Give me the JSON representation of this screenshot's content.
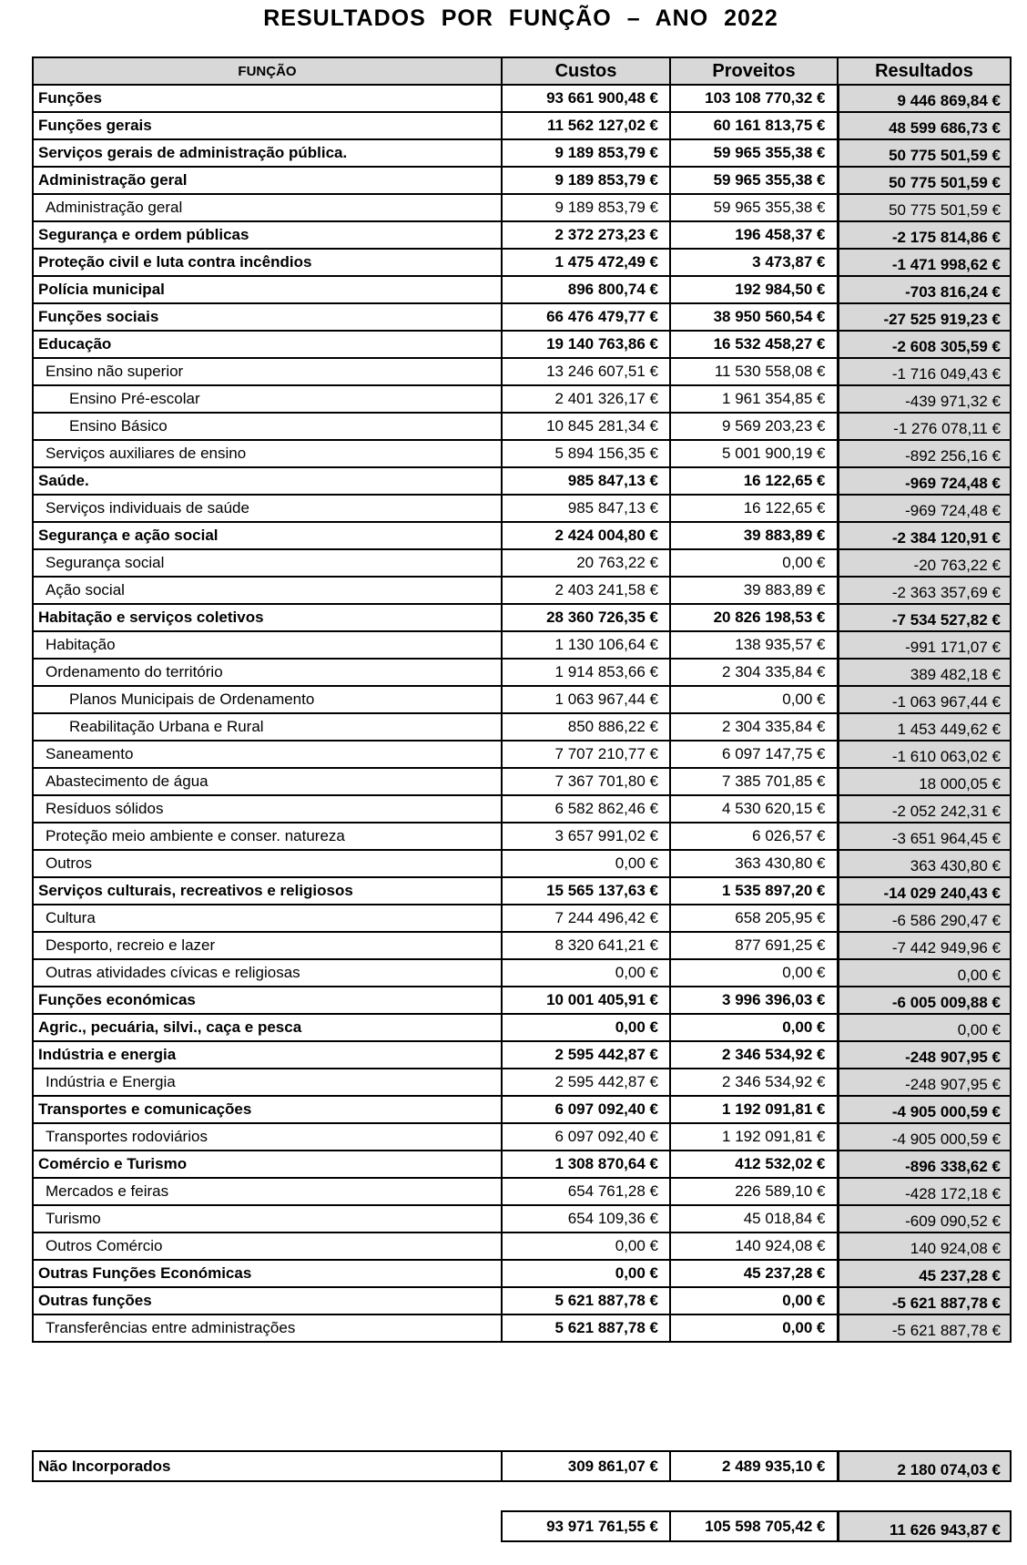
{
  "title": "RESULTADOS POR FUNÇÃO – ANO 2022",
  "colors": {
    "cell_gray": "#d8d8d8",
    "border": "#000000",
    "background": "#ffffff",
    "text": "#000000"
  },
  "table": {
    "headers": {
      "funcao": "FUNÇÃO",
      "custos": "Custos",
      "proveitos": "Proveitos",
      "resultados": "Resultados"
    },
    "rows": [
      {
        "label": "Funções",
        "indent": 0,
        "bold": true,
        "custos": "93 661 900,48 €",
        "proveitos": "103 108 770,32 €",
        "resultados": "9 446 869,84 €",
        "resultados_bold": true
      },
      {
        "label": "Funções gerais",
        "indent": 0,
        "bold": true,
        "custos": "11 562 127,02 €",
        "proveitos": "60 161 813,75 €",
        "resultados": "48 599 686,73 €",
        "resultados_bold": true
      },
      {
        "label": "Serviços gerais de administração pública.",
        "indent": 0,
        "bold": true,
        "custos": "9 189 853,79 €",
        "proveitos": "59 965 355,38 €",
        "resultados": "50 775 501,59 €",
        "resultados_bold": true
      },
      {
        "label": "Administração geral",
        "indent": 0,
        "bold": true,
        "custos": "9 189 853,79 €",
        "proveitos": "59 965 355,38 €",
        "resultados": "50 775 501,59 €",
        "resultados_bold": true
      },
      {
        "label": "Administração geral",
        "indent": 1,
        "bold": false,
        "custos": "9 189 853,79 €",
        "proveitos": "59 965 355,38 €",
        "resultados": "50 775 501,59 €",
        "resultados_bold": false
      },
      {
        "label": "Segurança e ordem públicas",
        "indent": 0,
        "bold": true,
        "custos": "2 372 273,23 €",
        "proveitos": "196 458,37 €",
        "resultados": "-2 175 814,86 €",
        "resultados_bold": true
      },
      {
        "label": "Proteção civil e luta contra incêndios",
        "indent": 0,
        "bold": true,
        "custos": "1 475 472,49 €",
        "proveitos": "3 473,87 €",
        "resultados": "-1 471 998,62 €",
        "resultados_bold": true
      },
      {
        "label": "Polícia municipal",
        "indent": 0,
        "bold": true,
        "custos": "896 800,74 €",
        "proveitos": "192 984,50 €",
        "resultados": "-703 816,24 €",
        "resultados_bold": true
      },
      {
        "label": "Funções sociais",
        "indent": 0,
        "bold": true,
        "custos": "66 476 479,77 €",
        "proveitos": "38 950 560,54 €",
        "resultados": "-27 525 919,23 €",
        "resultados_bold": true
      },
      {
        "label": "Educação",
        "indent": 0,
        "bold": true,
        "custos": "19 140 763,86 €",
        "proveitos": "16 532 458,27 €",
        "resultados": "-2 608 305,59 €",
        "resultados_bold": true
      },
      {
        "label": "Ensino não superior",
        "indent": 1,
        "bold": false,
        "custos": "13 246 607,51 €",
        "proveitos": "11 530 558,08 €",
        "resultados": "-1 716 049,43 €",
        "resultados_bold": false
      },
      {
        "label": "Ensino Pré-escolar",
        "indent": 2,
        "bold": false,
        "custos": "2 401 326,17 €",
        "proveitos": "1 961 354,85 €",
        "resultados": "-439 971,32 €",
        "resultados_bold": false
      },
      {
        "label": "Ensino Básico",
        "indent": 2,
        "bold": false,
        "custos": "10 845 281,34 €",
        "proveitos": "9 569 203,23 €",
        "resultados": "-1 276 078,11 €",
        "resultados_bold": false
      },
      {
        "label": "Serviços auxiliares de ensino",
        "indent": 1,
        "bold": false,
        "custos": "5 894 156,35 €",
        "proveitos": "5 001 900,19 €",
        "resultados": "-892 256,16 €",
        "resultados_bold": false
      },
      {
        "label": "Saúde.",
        "indent": 0,
        "bold": true,
        "custos": "985 847,13 €",
        "proveitos": "16 122,65 €",
        "resultados": "-969 724,48 €",
        "resultados_bold": true
      },
      {
        "label": "Serviços individuais de saúde",
        "indent": 1,
        "bold": false,
        "custos": "985 847,13 €",
        "proveitos": "16 122,65 €",
        "resultados": "-969 724,48 €",
        "resultados_bold": false
      },
      {
        "label": "Segurança e ação social",
        "indent": 0,
        "bold": true,
        "custos": "2 424 004,80 €",
        "proveitos": "39 883,89 €",
        "resultados": "-2 384 120,91 €",
        "resultados_bold": true
      },
      {
        "label": "Segurança social",
        "indent": 1,
        "bold": false,
        "custos": "20 763,22 €",
        "proveitos": "0,00 €",
        "resultados": "-20 763,22 €",
        "resultados_bold": false
      },
      {
        "label": "Ação social",
        "indent": 1,
        "bold": false,
        "custos": "2 403 241,58 €",
        "proveitos": "39 883,89 €",
        "resultados": "-2 363 357,69 €",
        "resultados_bold": false
      },
      {
        "label": "Habitação e serviços coletivos",
        "indent": 0,
        "bold": true,
        "custos": "28 360 726,35 €",
        "proveitos": "20 826 198,53 €",
        "resultados": "-7 534 527,82 €",
        "resultados_bold": true
      },
      {
        "label": "Habitação",
        "indent": 1,
        "bold": false,
        "custos": "1 130 106,64 €",
        "proveitos": "138 935,57 €",
        "resultados": "-991 171,07 €",
        "resultados_bold": false
      },
      {
        "label": "Ordenamento do território",
        "indent": 1,
        "bold": false,
        "custos": "1 914 853,66 €",
        "proveitos": "2 304 335,84 €",
        "resultados": "389 482,18 €",
        "resultados_bold": false
      },
      {
        "label": "Planos Municipais de Ordenamento",
        "indent": 2,
        "bold": false,
        "custos": "1 063 967,44 €",
        "proveitos": "0,00 €",
        "resultados": "-1 063 967,44 €",
        "resultados_bold": false
      },
      {
        "label": "Reabilitação Urbana e Rural",
        "indent": 2,
        "bold": false,
        "custos": "850 886,22 €",
        "proveitos": "2 304 335,84 €",
        "resultados": "1 453 449,62 €",
        "resultados_bold": false
      },
      {
        "label": "Saneamento",
        "indent": 1,
        "bold": false,
        "custos": "7 707 210,77 €",
        "proveitos": "6 097 147,75 €",
        "resultados": "-1 610 063,02 €",
        "resultados_bold": false
      },
      {
        "label": "Abastecimento de água",
        "indent": 1,
        "bold": false,
        "custos": "7 367 701,80 €",
        "proveitos": "7 385 701,85 €",
        "resultados": "18 000,05 €",
        "resultados_bold": false
      },
      {
        "label": "Resíduos sólidos",
        "indent": 1,
        "bold": false,
        "custos": "6 582 862,46 €",
        "proveitos": "4 530 620,15 €",
        "resultados": "-2 052 242,31 €",
        "resultados_bold": false
      },
      {
        "label": "Proteção meio ambiente e conser. natureza",
        "indent": 1,
        "bold": false,
        "custos": "3 657 991,02 €",
        "proveitos": "6 026,57 €",
        "resultados": "-3 651 964,45 €",
        "resultados_bold": false
      },
      {
        "label": "Outros",
        "indent": 1,
        "bold": false,
        "custos": "0,00 €",
        "proveitos": "363 430,80 €",
        "resultados": "363 430,80 €",
        "resultados_bold": false
      },
      {
        "label": "Serviços culturais, recreativos e religiosos",
        "indent": 0,
        "bold": true,
        "custos": "15 565 137,63 €",
        "proveitos": "1 535 897,20 €",
        "resultados": "-14 029 240,43 €",
        "resultados_bold": true
      },
      {
        "label": "Cultura",
        "indent": 1,
        "bold": false,
        "custos": "7 244 496,42 €",
        "proveitos": "658 205,95 €",
        "resultados": "-6 586 290,47 €",
        "resultados_bold": false
      },
      {
        "label": "Desporto, recreio e lazer",
        "indent": 1,
        "bold": false,
        "custos": "8 320 641,21 €",
        "proveitos": "877 691,25 €",
        "resultados": "-7 442 949,96 €",
        "resultados_bold": false
      },
      {
        "label": "Outras atividades cívicas e religiosas",
        "indent": 1,
        "bold": false,
        "custos": "0,00 €",
        "proveitos": "0,00 €",
        "resultados": "0,00 €",
        "resultados_bold": false
      },
      {
        "label": "Funções económicas",
        "indent": 0,
        "bold": true,
        "custos": "10 001 405,91 €",
        "proveitos": "3 996 396,03 €",
        "resultados": "-6 005 009,88 €",
        "resultados_bold": true
      },
      {
        "label": "Agric., pecuária, silvi., caça e pesca",
        "indent": 0,
        "bold": true,
        "custos": "0,00 €",
        "proveitos": "0,00 €",
        "resultados": "0,00 €",
        "resultados_bold": false
      },
      {
        "label": "Indústria e energia",
        "indent": 0,
        "bold": true,
        "custos": "2 595 442,87 €",
        "proveitos": "2 346 534,92 €",
        "resultados": "-248 907,95 €",
        "resultados_bold": true
      },
      {
        "label": "Indústria e Energia",
        "indent": 1,
        "bold": false,
        "custos": "2 595 442,87 €",
        "proveitos": "2 346 534,92 €",
        "resultados": "-248 907,95 €",
        "resultados_bold": false
      },
      {
        "label": "Transportes e comunicações",
        "indent": 0,
        "bold": true,
        "custos": "6 097 092,40 €",
        "proveitos": "1 192 091,81 €",
        "resultados": "-4 905 000,59 €",
        "resultados_bold": true
      },
      {
        "label": "Transportes rodoviários",
        "indent": 1,
        "bold": false,
        "custos": "6 097 092,40 €",
        "proveitos": "1 192 091,81 €",
        "resultados": "-4 905 000,59 €",
        "resultados_bold": false
      },
      {
        "label": "Comércio e Turismo",
        "indent": 0,
        "bold": true,
        "custos": "1 308 870,64 €",
        "proveitos": "412 532,02 €",
        "resultados": "-896 338,62 €",
        "resultados_bold": true
      },
      {
        "label": "Mercados e feiras",
        "indent": 1,
        "bold": false,
        "custos": "654 761,28 €",
        "proveitos": "226 589,10 €",
        "resultados": "-428 172,18 €",
        "resultados_bold": false
      },
      {
        "label": "Turismo",
        "indent": 1,
        "bold": false,
        "custos": "654 109,36 €",
        "proveitos": "45 018,84 €",
        "resultados": "-609 090,52 €",
        "resultados_bold": false
      },
      {
        "label": "Outros Comércio",
        "indent": 1,
        "bold": false,
        "custos": "0,00 €",
        "proveitos": "140 924,08 €",
        "resultados": "140 924,08 €",
        "resultados_bold": false
      },
      {
        "label": "Outras Funções Económicas",
        "indent": 0,
        "bold": true,
        "custos": "0,00 €",
        "proveitos": "45 237,28 €",
        "resultados": "45 237,28 €",
        "resultados_bold": true
      },
      {
        "label": "Outras funções",
        "indent": 0,
        "bold": true,
        "custos": "5 621 887,78 €",
        "proveitos": "0,00 €",
        "resultados": "-5 621 887,78 €",
        "resultados_bold": true
      },
      {
        "label": "Transferências entre administrações",
        "indent": 1,
        "bold": false,
        "values_bold": true,
        "custos": "5 621 887,78 €",
        "proveitos": "0,00 €",
        "resultados": "-5 621 887,78 €",
        "resultados_bold": false
      }
    ]
  },
  "nao_incorporados": {
    "label": "Não Incorporados",
    "custos": "309 861,07 €",
    "proveitos": "2 489 935,10 €",
    "resultados": "2 180 074,03 €"
  },
  "totals": {
    "custos": "93 971 761,55 €",
    "proveitos": "105 598 705,42 €",
    "resultados": "11 626 943,87 €"
  }
}
